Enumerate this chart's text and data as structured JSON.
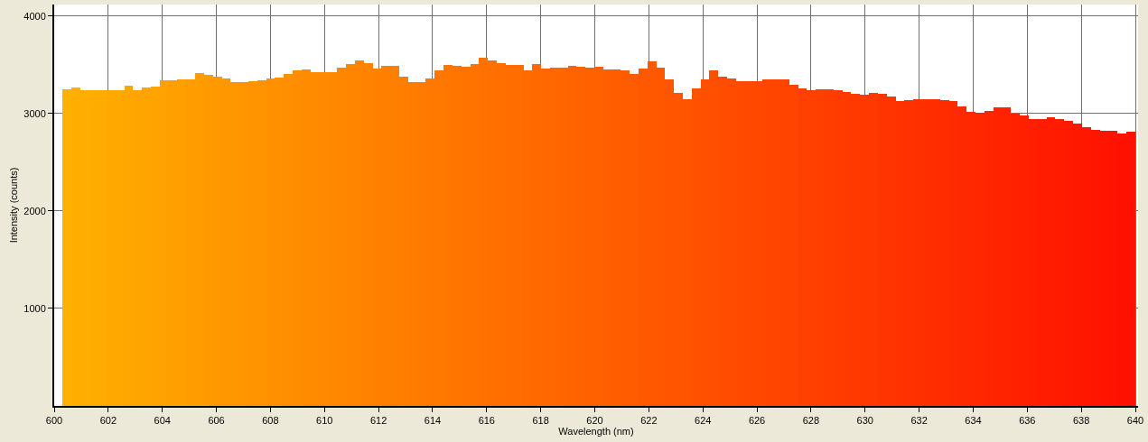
{
  "chart_data": {
    "type": "histogram",
    "xlabel": "Wavelength (nm)",
    "ylabel": "Intensity (counts)",
    "bins": [
      600.3,
      600.63,
      600.96,
      601.28,
      601.61,
      601.94,
      602.27,
      602.6,
      602.92,
      603.25,
      603.58,
      603.91,
      604.24,
      604.56,
      604.89,
      605.22,
      605.55,
      605.88,
      606.2,
      606.53,
      606.86,
      607.19,
      607.52,
      607.84,
      608.17,
      608.5,
      608.83,
      609.16,
      609.48,
      609.81,
      610.14,
      610.47,
      610.8,
      611.12,
      611.45,
      611.78,
      612.11,
      612.44,
      612.76,
      613.09,
      613.42,
      613.75,
      614.08,
      614.4,
      614.73,
      615.06,
      615.39,
      615.72,
      616.04,
      616.37,
      616.7,
      617.03,
      617.36,
      617.68,
      618.01,
      618.34,
      618.67,
      619.0,
      619.32,
      619.65,
      619.98,
      620.31,
      620.64,
      620.96,
      621.29,
      621.62,
      621.95,
      622.28,
      622.6,
      622.93,
      623.26,
      623.59,
      623.92,
      624.24,
      624.57,
      624.9,
      625.23,
      625.56,
      625.88,
      626.21,
      626.54,
      626.87,
      627.2,
      627.52,
      627.85,
      628.18,
      628.51,
      628.84,
      629.16,
      629.49,
      629.82,
      630.15,
      630.48,
      630.8,
      631.13,
      631.46,
      631.79,
      632.12,
      632.44,
      632.77,
      633.1,
      633.43,
      633.76,
      634.08,
      634.41,
      634.74,
      635.07,
      635.4,
      635.72,
      636.05,
      636.38,
      636.71,
      637.04,
      637.36,
      637.69,
      638.02,
      638.35,
      638.68,
      639.0,
      639.33,
      639.66,
      639.99
    ],
    "values": [
      3250,
      3270,
      3240,
      3240,
      3240,
      3240,
      3240,
      3290,
      3240,
      3270,
      3280,
      3340,
      3340,
      3350,
      3350,
      3420,
      3400,
      3380,
      3360,
      3320,
      3320,
      3330,
      3340,
      3360,
      3370,
      3410,
      3440,
      3450,
      3430,
      3430,
      3430,
      3470,
      3510,
      3550,
      3520,
      3460,
      3490,
      3490,
      3380,
      3320,
      3320,
      3360,
      3440,
      3500,
      3490,
      3480,
      3510,
      3570,
      3550,
      3520,
      3500,
      3500,
      3440,
      3510,
      3460,
      3470,
      3470,
      3490,
      3480,
      3470,
      3480,
      3450,
      3450,
      3440,
      3410,
      3460,
      3540,
      3470,
      3350,
      3210,
      3150,
      3260,
      3350,
      3440,
      3380,
      3360,
      3330,
      3330,
      3330,
      3350,
      3350,
      3350,
      3300,
      3260,
      3240,
      3250,
      3250,
      3240,
      3220,
      3200,
      3190,
      3210,
      3200,
      3180,
      3130,
      3140,
      3150,
      3150,
      3150,
      3140,
      3130,
      3070,
      3020,
      3010,
      3030,
      3060,
      3060,
      3000,
      2980,
      2940,
      2940,
      2960,
      2940,
      2930,
      2900,
      2860,
      2830,
      2820,
      2820,
      2800,
      2810
    ],
    "colors": [
      "#ffb000",
      "#ffaf00",
      "#ffad00",
      "#ffac00",
      "#ffab00",
      "#ffa900",
      "#ffa800",
      "#ffa700",
      "#ffa500",
      "#ffa400",
      "#ffa300",
      "#ffa100",
      "#ffa000",
      "#ff9f00",
      "#ff9d00",
      "#ff9c00",
      "#ff9b00",
      "#ff9900",
      "#ff9800",
      "#ff9700",
      "#ff9500",
      "#ff9400",
      "#ff9300",
      "#ff9100",
      "#ff9000",
      "#ff8f00",
      "#ff8d00",
      "#ff8c00",
      "#ff8b00",
      "#ff8900",
      "#ff8800",
      "#ff8700",
      "#ff8500",
      "#ff8400",
      "#ff8300",
      "#ff8100",
      "#ff8000",
      "#ff7f00",
      "#ff7d00",
      "#ff7c00",
      "#ff7b00",
      "#ff7900",
      "#ff7800",
      "#ff7700",
      "#ff7500",
      "#ff7400",
      "#ff7300",
      "#ff7100",
      "#ff7000",
      "#ff6f00",
      "#ff6d00",
      "#ff6c00",
      "#ff6b00",
      "#ff6900",
      "#ff6800",
      "#ff6700",
      "#ff6500",
      "#ff6400",
      "#ff6300",
      "#ff6100",
      "#ff6000",
      "#ff5f00",
      "#ff5d00",
      "#ff5c00",
      "#ff5b00",
      "#ff5900",
      "#ff5800",
      "#ff5700",
      "#ff5500",
      "#ff5400",
      "#ff5300",
      "#ff5100",
      "#ff5000",
      "#ff4f00",
      "#ff4d00",
      "#ff4c00",
      "#ff4b00",
      "#ff4900",
      "#ff4800",
      "#ff4700",
      "#ff4500",
      "#ff4400",
      "#ff4300",
      "#ff4100",
      "#ff4000",
      "#ff3f00",
      "#ff3d00",
      "#ff3c00",
      "#ff3b00",
      "#ff3900",
      "#ff3800",
      "#ff3700",
      "#ff3500",
      "#ff3400",
      "#ff3300",
      "#ff3100",
      "#ff3000",
      "#ff2f00",
      "#ff2d00",
      "#ff2c00",
      "#ff2b00",
      "#ff2900",
      "#ff2800",
      "#ff2700",
      "#ff2500",
      "#ff2400",
      "#ff2300",
      "#ff2100",
      "#ff2000",
      "#ff1f00",
      "#ff1d00",
      "#ff1c00",
      "#ff1b00",
      "#ff1900",
      "#ff1800",
      "#ff1700",
      "#ff1500",
      "#ff1400",
      "#ff1300",
      "#ff1100",
      "#ff1000"
    ],
    "xlim": [
      600,
      640.1
    ],
    "ylim": [
      0,
      4120
    ],
    "xticks": [
      600,
      602,
      604,
      606,
      608,
      610,
      612,
      614,
      616,
      618,
      620,
      622,
      624,
      626,
      628,
      630,
      632,
      634,
      636,
      638,
      640
    ],
    "yticks": [
      1000,
      2000,
      3000,
      4000
    ],
    "grid": true
  }
}
